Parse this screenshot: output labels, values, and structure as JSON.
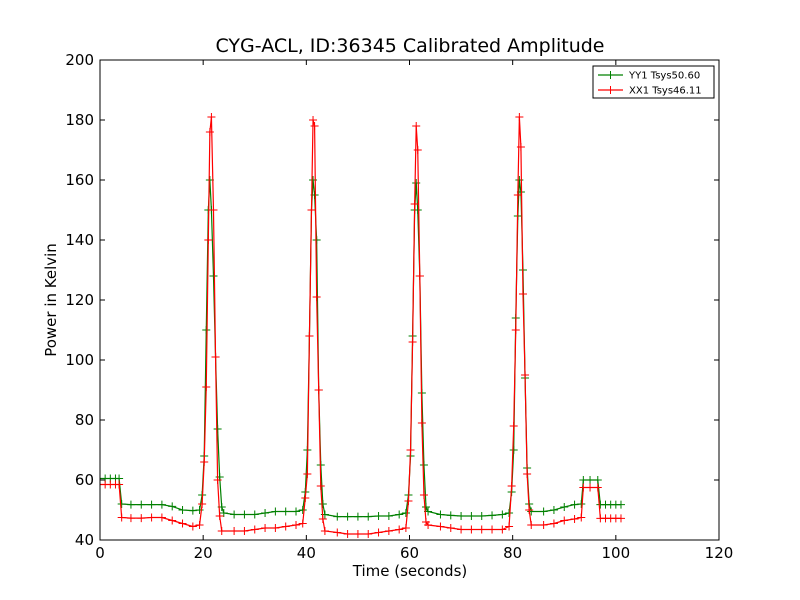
{
  "chart_data": {
    "type": "line",
    "title": "CYG-ACL, ID:36345 Calibrated Amplitude",
    "xlabel": "Time (seconds)",
    "ylabel": "Power in Kelvin",
    "xlim": [
      0,
      120
    ],
    "ylim": [
      40,
      200
    ],
    "x_ticks": [
      "0",
      "20",
      "40",
      "60",
      "80",
      "100",
      "120"
    ],
    "y_ticks": [
      "40",
      "60",
      "80",
      "100",
      "120",
      "140",
      "160",
      "180",
      "200"
    ],
    "x_tick_values": [
      0,
      20,
      40,
      60,
      80,
      100,
      120
    ],
    "y_tick_values": [
      40,
      60,
      80,
      100,
      120,
      140,
      160,
      180,
      200
    ],
    "grid": false,
    "legend_position": "top-right",
    "marker": "+",
    "series": [
      {
        "name": "YY1 Tsys50.60",
        "color": "#008000",
        "points": [
          [
            0,
            60.5
          ],
          [
            1,
            60.5
          ],
          [
            2,
            60.5
          ],
          [
            3,
            60.5
          ],
          [
            3.7,
            60.5
          ],
          [
            4.2,
            52
          ],
          [
            6,
            51.8
          ],
          [
            8,
            51.8
          ],
          [
            10,
            51.8
          ],
          [
            12,
            51.8
          ],
          [
            14,
            51.2
          ],
          [
            16,
            50
          ],
          [
            18,
            49.8
          ],
          [
            19.3,
            50
          ],
          [
            19.8,
            55
          ],
          [
            20.2,
            68
          ],
          [
            20.6,
            110
          ],
          [
            21,
            150
          ],
          [
            21.3,
            160
          ],
          [
            21.6,
            150
          ],
          [
            22,
            128
          ],
          [
            22.4,
            101
          ],
          [
            22.8,
            77
          ],
          [
            23.2,
            61
          ],
          [
            23.6,
            51
          ],
          [
            24,
            49
          ],
          [
            26,
            48.5
          ],
          [
            28,
            48.5
          ],
          [
            30,
            48.5
          ],
          [
            32,
            49
          ],
          [
            34,
            49.5
          ],
          [
            36,
            49.5
          ],
          [
            38,
            49.5
          ],
          [
            39.3,
            50
          ],
          [
            39.8,
            56
          ],
          [
            40.2,
            70
          ],
          [
            40.6,
            108
          ],
          [
            41,
            150
          ],
          [
            41.3,
            160
          ],
          [
            41.6,
            155
          ],
          [
            42,
            140
          ],
          [
            42.4,
            90
          ],
          [
            42.8,
            65
          ],
          [
            43.2,
            52
          ],
          [
            43.6,
            48.5
          ],
          [
            46,
            47.8
          ],
          [
            48,
            47.8
          ],
          [
            50,
            47.8
          ],
          [
            52,
            47.8
          ],
          [
            54,
            48
          ],
          [
            56,
            48
          ],
          [
            58,
            48.5
          ],
          [
            59.3,
            49
          ],
          [
            59.8,
            55
          ],
          [
            60.2,
            68
          ],
          [
            60.6,
            108
          ],
          [
            61,
            150
          ],
          [
            61.3,
            159
          ],
          [
            61.6,
            150
          ],
          [
            62,
            128
          ],
          [
            62.4,
            89
          ],
          [
            62.8,
            65
          ],
          [
            63.2,
            51
          ],
          [
            63.6,
            49.5
          ],
          [
            66,
            48.5
          ],
          [
            68,
            48.2
          ],
          [
            70,
            48
          ],
          [
            72,
            48
          ],
          [
            74,
            48
          ],
          [
            76,
            48.2
          ],
          [
            78,
            48.5
          ],
          [
            79.3,
            49
          ],
          [
            79.8,
            56
          ],
          [
            80.2,
            70
          ],
          [
            80.6,
            114
          ],
          [
            81,
            148
          ],
          [
            81.3,
            160
          ],
          [
            81.6,
            156
          ],
          [
            82,
            130
          ],
          [
            82.4,
            94
          ],
          [
            82.8,
            64
          ],
          [
            83.2,
            52
          ],
          [
            83.6,
            49.5
          ],
          [
            86,
            49.5
          ],
          [
            88,
            50
          ],
          [
            90,
            51
          ],
          [
            92,
            51.8
          ],
          [
            93.3,
            52
          ],
          [
            93.7,
            60
          ],
          [
            95,
            60
          ],
          [
            96.5,
            60
          ],
          [
            97,
            51.8
          ],
          [
            98,
            51.8
          ],
          [
            99,
            51.8
          ],
          [
            100,
            51.8
          ],
          [
            101,
            51.8
          ]
        ]
      },
      {
        "name": "XX1 Tsys46.11",
        "color": "#ff0000",
        "points": [
          [
            0,
            58.5
          ],
          [
            1,
            58.5
          ],
          [
            2,
            58.5
          ],
          [
            3,
            58.5
          ],
          [
            3.7,
            58.5
          ],
          [
            4.2,
            47.5
          ],
          [
            6,
            47.3
          ],
          [
            8,
            47.3
          ],
          [
            10,
            47.5
          ],
          [
            12,
            47.5
          ],
          [
            14,
            46.5
          ],
          [
            16,
            45.5
          ],
          [
            18,
            44.5
          ],
          [
            19.3,
            45
          ],
          [
            19.8,
            52
          ],
          [
            20.2,
            66
          ],
          [
            20.6,
            91
          ],
          [
            21,
            140
          ],
          [
            21.3,
            176
          ],
          [
            21.6,
            181
          ],
          [
            22,
            150
          ],
          [
            22.4,
            101
          ],
          [
            22.8,
            60
          ],
          [
            23.2,
            48
          ],
          [
            23.6,
            43
          ],
          [
            26,
            43
          ],
          [
            28,
            43
          ],
          [
            30,
            43.5
          ],
          [
            32,
            44
          ],
          [
            34,
            44
          ],
          [
            36,
            44.5
          ],
          [
            38,
            45
          ],
          [
            39.3,
            45.5
          ],
          [
            39.8,
            54
          ],
          [
            40.2,
            62
          ],
          [
            40.6,
            108
          ],
          [
            41,
            150
          ],
          [
            41.3,
            180
          ],
          [
            41.6,
            178
          ],
          [
            42,
            121
          ],
          [
            42.4,
            90
          ],
          [
            42.8,
            58
          ],
          [
            43.2,
            47
          ],
          [
            43.6,
            43
          ],
          [
            46,
            42.5
          ],
          [
            48,
            42
          ],
          [
            50,
            42
          ],
          [
            52,
            42
          ],
          [
            54,
            42.5
          ],
          [
            56,
            43
          ],
          [
            58,
            43.5
          ],
          [
            59.3,
            44
          ],
          [
            59.8,
            53
          ],
          [
            60.2,
            70
          ],
          [
            60.6,
            106
          ],
          [
            61,
            152
          ],
          [
            61.3,
            178
          ],
          [
            61.6,
            170
          ],
          [
            62,
            128
          ],
          [
            62.4,
            79
          ],
          [
            62.8,
            55
          ],
          [
            63.2,
            46
          ],
          [
            63.6,
            45
          ],
          [
            66,
            44.5
          ],
          [
            68,
            44
          ],
          [
            70,
            43.5
          ],
          [
            72,
            43.5
          ],
          [
            74,
            43.5
          ],
          [
            76,
            43.5
          ],
          [
            78,
            43.5
          ],
          [
            79.3,
            44.5
          ],
          [
            79.8,
            58
          ],
          [
            80.2,
            78
          ],
          [
            80.6,
            110
          ],
          [
            81,
            155
          ],
          [
            81.3,
            181
          ],
          [
            81.6,
            171
          ],
          [
            82,
            122
          ],
          [
            82.4,
            95
          ],
          [
            82.8,
            62
          ],
          [
            83.2,
            50
          ],
          [
            83.6,
            45
          ],
          [
            86,
            45
          ],
          [
            88,
            45.5
          ],
          [
            90,
            46.5
          ],
          [
            92,
            47
          ],
          [
            93.3,
            47.5
          ],
          [
            93.7,
            57.5
          ],
          [
            95,
            57.5
          ],
          [
            96.5,
            57.5
          ],
          [
            97,
            47.2
          ],
          [
            98,
            47.2
          ],
          [
            99,
            47.2
          ],
          [
            100,
            47.2
          ],
          [
            101,
            47.2
          ]
        ]
      }
    ]
  }
}
